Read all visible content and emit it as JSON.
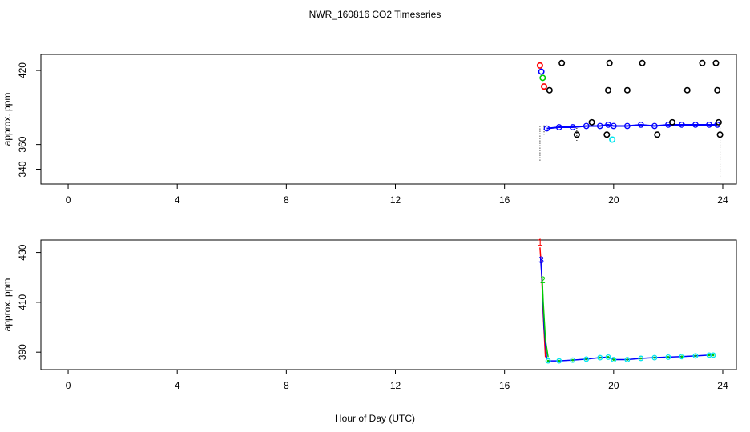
{
  "title": "NWR_160816  CO2 Timeseries",
  "xlabel": "Hour of Day (UTC)",
  "colors": {
    "red": "#ff0000",
    "green": "#00cc00",
    "blue": "#0000ff",
    "cyan": "#00e5ee",
    "black": "#000000"
  },
  "chart_data": [
    {
      "type": "scatter",
      "ylabel": "approx. ppm",
      "xlim": [
        -1,
        24.5
      ],
      "ylim": [
        328,
        433
      ],
      "x_ticks": [
        0,
        4,
        8,
        12,
        16,
        20,
        24
      ],
      "y_ticks": [
        340,
        360,
        420
      ],
      "grid": false,
      "series": [
        {
          "color": "red",
          "points": [
            [
              17.3,
              424
            ],
            [
              17.45,
              407
            ]
          ]
        },
        {
          "color": "blue",
          "points": [
            [
              17.35,
              419
            ]
          ]
        },
        {
          "color": "green",
          "points": [
            [
              17.4,
              414
            ]
          ]
        },
        {
          "color": "cyan",
          "points": [
            [
              19.95,
              364
            ]
          ]
        },
        {
          "color": "black",
          "points": [
            [
              17.65,
              404
            ],
            [
              18.1,
              426
            ],
            [
              18.65,
              368
            ],
            [
              19.2,
              378
            ],
            [
              19.75,
              368
            ],
            [
              19.8,
              404
            ],
            [
              19.85,
              426
            ],
            [
              20.5,
              404
            ],
            [
              21.05,
              426
            ],
            [
              21.6,
              368
            ],
            [
              22.15,
              378
            ],
            [
              22.7,
              404
            ],
            [
              23.25,
              426
            ],
            [
              23.75,
              426
            ],
            [
              23.8,
              404
            ],
            [
              23.85,
              378
            ],
            [
              23.9,
              368
            ]
          ]
        },
        {
          "color": "black",
          "marker": "vertical-drop",
          "points": [
            [
              17.3,
              347
            ],
            [
              17.45,
              368
            ],
            [
              18.1,
              376
            ],
            [
              18.65,
              363
            ],
            [
              19.85,
              376
            ],
            [
              20.5,
              376
            ],
            [
              21.05,
              376
            ],
            [
              22.7,
              376
            ],
            [
              23.25,
              376
            ],
            [
              23.75,
              376
            ],
            [
              23.9,
              334
            ]
          ]
        }
      ],
      "baseline": {
        "color": "blue",
        "x": [
          17.55,
          18.0,
          18.5,
          19.0,
          19.5,
          19.8,
          20.0,
          20.5,
          21.0,
          21.5,
          22.0,
          22.5,
          23.0,
          23.5,
          23.8
        ],
        "y": [
          373,
          374,
          374,
          375,
          375,
          376,
          375,
          375,
          376,
          375,
          376,
          376,
          376,
          376,
          376
        ]
      }
    },
    {
      "type": "line",
      "ylabel": "approx. ppm",
      "xlim": [
        -1,
        24.5
      ],
      "ylim": [
        383,
        435
      ],
      "x_ticks": [
        0,
        4,
        8,
        12,
        16,
        20,
        24
      ],
      "y_ticks": [
        390,
        410,
        430
      ],
      "grid": false,
      "labels": [
        {
          "text": "1",
          "x": 17.3,
          "y": 434,
          "color": "red"
        },
        {
          "text": "3",
          "x": 17.35,
          "y": 427,
          "color": "blue"
        },
        {
          "text": "2",
          "x": 17.4,
          "y": 419,
          "color": "green"
        }
      ],
      "series": [
        {
          "color": "red",
          "x": [
            17.3,
            17.35,
            17.42,
            17.5
          ],
          "y": [
            432,
            424,
            405,
            388
          ]
        },
        {
          "color": "blue",
          "x": [
            17.32,
            17.38,
            17.45,
            17.55
          ],
          "y": [
            428,
            418,
            400,
            387
          ]
        },
        {
          "color": "green",
          "x": [
            17.38,
            17.42,
            17.5,
            17.6
          ],
          "y": [
            420,
            410,
            395,
            388
          ]
        }
      ],
      "baseline": {
        "x": [
          17.6,
          18.0,
          18.5,
          19.0,
          19.5,
          19.8,
          20.0,
          20.5,
          21.0,
          21.5,
          22.0,
          22.5,
          23.0,
          23.5,
          23.65
        ],
        "y": [
          386.5,
          386.5,
          386.8,
          387.2,
          387.8,
          388.0,
          387.0,
          387.0,
          387.5,
          387.8,
          388.0,
          388.2,
          388.5,
          388.8,
          388.8
        ]
      }
    }
  ]
}
